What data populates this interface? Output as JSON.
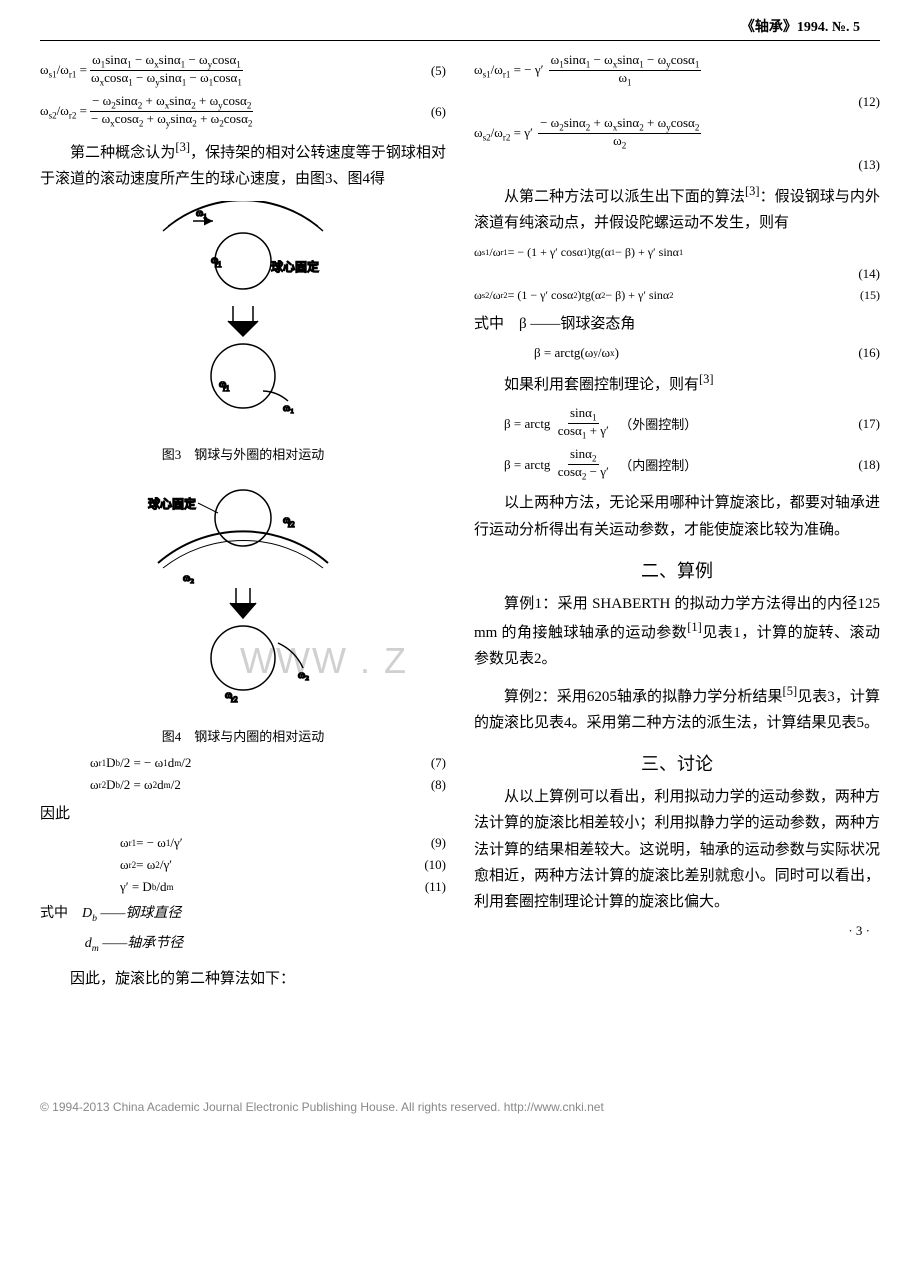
{
  "header": {
    "journal": "《轴承》1994. №. 5"
  },
  "watermark": "WWW . Z",
  "left": {
    "eq5": {
      "lhs": "ω<sub>s1</sub>/ω<sub>r1</sub> =",
      "num": "ω<sub>1</sub>sinα<sub>1</sub> − ω<sub>x</sub>sinα<sub>1</sub> − ω<sub>y</sub>cosα<sub>1</sub>",
      "den": "ω<sub>x</sub>cosα<sub>1</sub> − ω<sub>y</sub>sinα<sub>1</sub> − ω<sub>1</sub>cosα<sub>1</sub>",
      "num_label": "(5)"
    },
    "eq6": {
      "lhs": "ω<sub>s2</sub>/ω<sub>r2</sub> =",
      "num": "− ω<sub>2</sub>sinα<sub>2</sub> + ω<sub>x</sub>sinα<sub>2</sub> + ω<sub>y</sub>cosα<sub>2</sub>",
      "den": "− ω<sub>x</sub>cosα<sub>2</sub> + ω<sub>y</sub>sinα<sub>2</sub> + ω<sub>2</sub>cosα<sub>2</sub>",
      "num_label": "(6)"
    },
    "p1": "第二种概念认为<sup>[3]</sup>，保持架的相对公转速度等于钢球相对于滚道的滚动速度所产生的球心速度，由图3、图4得",
    "fig3_caption": "图3　钢球与外圈的相对运动",
    "fig4_caption": "图4　钢球与内圈的相对运动",
    "fig_labels": {
      "ballfix": "球心固定",
      "w1": "ω₁",
      "wr1": "ω_{r1}",
      "w2": "ω₂",
      "wr2": "ω_{r2}"
    },
    "eq7": {
      "text": "ω<sub>r1</sub>D<sub>b</sub>/2 = − ω<sub>1</sub>d<sub>m</sub>/2",
      "num_label": "(7)"
    },
    "eq8": {
      "text": "ω<sub>r2</sub>D<sub>b</sub>/2 = ω<sub>2</sub>d<sub>m</sub>/2",
      "num_label": "(8)"
    },
    "therefore": "因此",
    "eq9": {
      "text": "ω<sub>r1</sub> = − ω<sub>1</sub>/γ′",
      "num_label": "(9)"
    },
    "eq10": {
      "text": "ω<sub>r2</sub> = ω<sub>2</sub>/γ′",
      "num_label": "(10)"
    },
    "eq11": {
      "text": "γ′ = D<sub>b</sub>/d<sub>m</sub>",
      "num_label": "(11)"
    },
    "where_label": "式中",
    "var1": "D<sub>b</sub> ——钢球直径",
    "var2": "d<sub>m</sub> ——轴承节径",
    "p2": "因此，旋滚比的第二种算法如下："
  },
  "right": {
    "eq12": {
      "lhs": "ω<sub>s1</sub>/ω<sub>r1</sub> = − γ′",
      "num": "ω<sub>1</sub>sinα<sub>1</sub> − ω<sub>x</sub>sinα<sub>1</sub> − ω<sub>y</sub>cosα<sub>1</sub>",
      "den": "ω<sub>1</sub>",
      "num_label": "(12)"
    },
    "eq13": {
      "lhs": "ω<sub>s2</sub>/ω<sub>r2</sub> = γ′",
      "num": "− ω<sub>2</sub>sinα<sub>2</sub> + ω<sub>x</sub>sinα<sub>2</sub> + ω<sub>y</sub>cosα<sub>2</sub>",
      "den": "ω<sub>2</sub>",
      "num_label": "(13)"
    },
    "p1": "从第二种方法可以派生出下面的算法<sup>[3]</sup>：假设钢球与内外滚道有纯滚动点，并假设陀螺运动不发生，则有",
    "eq14": {
      "text": "ω<sub>s1</sub>/ω<sub>r1</sub> = − (1 + γ′ cosα<sub>1</sub>)tg(α<sub>1</sub> − β) + γ′ sinα<sub>1</sub>",
      "num_label": "(14)"
    },
    "eq15": {
      "text": "ω<sub>s2</sub>/ω<sub>r2</sub> = (1 − γ′ cosα<sub>2</sub>)tg(α<sub>2</sub> − β) + γ′ sinα<sub>2</sub>",
      "num_label": "(15)"
    },
    "where_beta": "式中　β ——钢球姿态角",
    "eq16": {
      "text": "β = arctg(ω<sub>y</sub>/ω<sub>x</sub>)",
      "num_label": "(16)"
    },
    "p2": "如果利用套圈控制理论，则有<sup>[3]</sup>",
    "eq17": {
      "lhs": "β = arctg",
      "num": "sinα<sub>1</sub>",
      "den": "cosα<sub>1</sub> + γ′",
      "suffix": "（外圈控制）",
      "num_label": "(17)"
    },
    "eq18": {
      "lhs": "β = arctg",
      "num": "sinα<sub>2</sub>",
      "den": "cosα<sub>2</sub> − γ′",
      "suffix": "（内圈控制）",
      "num_label": "(18)"
    },
    "p3": "以上两种方法，无论采用哪种计算旋滚比，都要对轴承进行运动分析得出有关运动参数，才能使旋滚比较为准确。",
    "sec2_title": "二、算例",
    "p4": "算例1：采用 SHABERTH 的拟动力学方法得出的内径125 mm 的角接触球轴承的运动参数<sup>[1]</sup>见表1，计算的旋转、滚动参数见表2。",
    "p5": "算例2：采用6205轴承的拟静力学分析结果<sup>[5]</sup>见表3，计算的旋滚比见表4。采用第二种方法的派生法，计算结果见表5。",
    "sec3_title": "三、讨论",
    "p6": "从以上算例可以看出，利用拟动力学的运动参数，两种方法计算的旋滚比相差较小；利用拟静力学的运动参数，两种方法计算的结果相差较大。这说明，轴承的运动参数与实际状况愈相近，两种方法计算的旋滚比差别就愈小。同时可以看出，利用套圈控制理论计算的旋滚比偏大。",
    "pagenum": "· 3 ·"
  },
  "footer": "© 1994-2013 China Academic Journal Electronic Publishing House. All rights reserved.    http://www.cnki.net"
}
